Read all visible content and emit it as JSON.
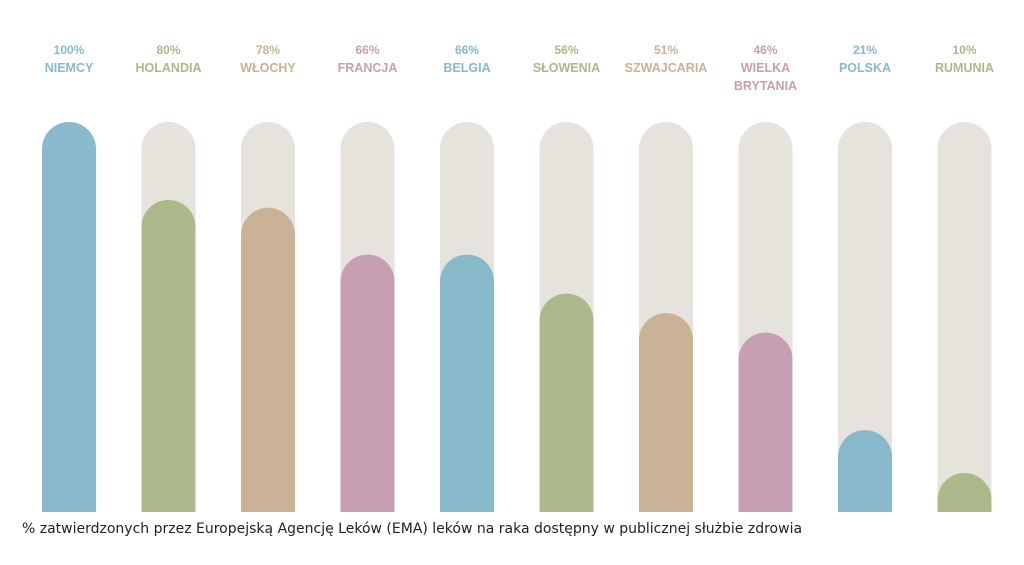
{
  "chart_data": {
    "type": "bar",
    "ylim": [
      0,
      100
    ],
    "categories": [
      "NIEMCY",
      "HOLANDIA",
      "WŁOCHY",
      "FRANCJA",
      "BELGIA",
      "SŁOWENIA",
      "SZWAJCARIA",
      "WIELKA BRYTANIA",
      "POLSKA",
      "RUMUNIA"
    ],
    "values": [
      100,
      80,
      78,
      66,
      66,
      56,
      51,
      46,
      21,
      10
    ],
    "value_labels": [
      "100%",
      "80%",
      "78%",
      "66%",
      "66%",
      "56%",
      "51%",
      "46%",
      "21%",
      "10%"
    ],
    "bar_colors": [
      "#88bacb",
      "#abb98a",
      "#c9b295",
      "#c79fb3",
      "#88bacb",
      "#abb98a",
      "#c9b295",
      "#c79fb3",
      "#88bacb",
      "#abb98a"
    ],
    "track_color": "#e6e2dc",
    "caption": "% zatwierdzonych przez Europejską Agencję Leków (EMA) leków na raka dostępny w publicznej służbie zdrowia"
  }
}
